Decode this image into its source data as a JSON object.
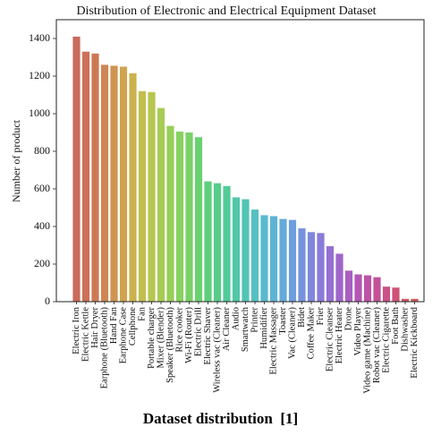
{
  "caption": "Dataset distribution  [1]",
  "chart_data": {
    "type": "bar",
    "title": "Distribution of Electronic and Electrical Equipment Dataset",
    "xlabel": "",
    "ylabel": "Number of product",
    "ylim": [
      0,
      1500
    ],
    "yticks": [
      0,
      200,
      400,
      600,
      800,
      1000,
      1200,
      1400
    ],
    "grid": false,
    "categories": [
      "Electric Iron",
      "Electric Kettle",
      "Hair Dryer",
      "Earphone (Bluetooth)",
      "Hand Fan",
      "Earphone Case",
      "Cellphone",
      "Fan",
      "Portable charger",
      "Mixer (Blender)",
      "Speaker (Bluetooth)",
      "Rice cooker",
      "Wi-Fi (Router)",
      "Electric Drill",
      "Electric Shaver",
      "Wireless vac (Cleaner)",
      "Air Cleaner",
      "Audio",
      "Smartwatch",
      "Printer",
      "Humidifier",
      "Electric Massager",
      "Toaster",
      "Vac (Cleaner)",
      "Bidet",
      "Coffee Maker",
      "Frier",
      "Electric Cleanser",
      "Electric Heater",
      "Drone",
      "Video Player",
      "Video game (Machine)",
      "Robot vac (Cleaner)",
      "Electric Cigarette",
      "Foot Bath",
      "Dishwasher",
      "Electric Kickboard"
    ],
    "values": [
      1410,
      1330,
      1320,
      1260,
      1255,
      1250,
      1215,
      1120,
      1115,
      1030,
      935,
      905,
      900,
      875,
      640,
      630,
      615,
      555,
      545,
      490,
      460,
      455,
      440,
      435,
      390,
      370,
      365,
      295,
      255,
      165,
      145,
      140,
      130,
      80,
      75,
      15,
      15
    ],
    "colors": [
      "#c96a5c",
      "#cb7157",
      "#cc7a56",
      "#cd8654",
      "#ce9452",
      "#cea44f",
      "#cbb24e",
      "#c3be4e",
      "#b7c650",
      "#a8cb53",
      "#97cf58",
      "#88d15f",
      "#79d167",
      "#6ad170",
      "#5ecf7c",
      "#56cd89",
      "#52cb98",
      "#51c8a7",
      "#52c4b5",
      "#55c0c2",
      "#59bacd",
      "#5eb3d4",
      "#65aad9",
      "#6c9fdc",
      "#7593dd",
      "#7f87dc",
      "#897bd8",
      "#9470d2",
      "#9f66ca",
      "#aa5ec0",
      "#b457b4",
      "#bd53a6",
      "#c45197",
      "#c95187",
      "#cc5377",
      "#ce5868",
      "#cf5d5d"
    ]
  }
}
